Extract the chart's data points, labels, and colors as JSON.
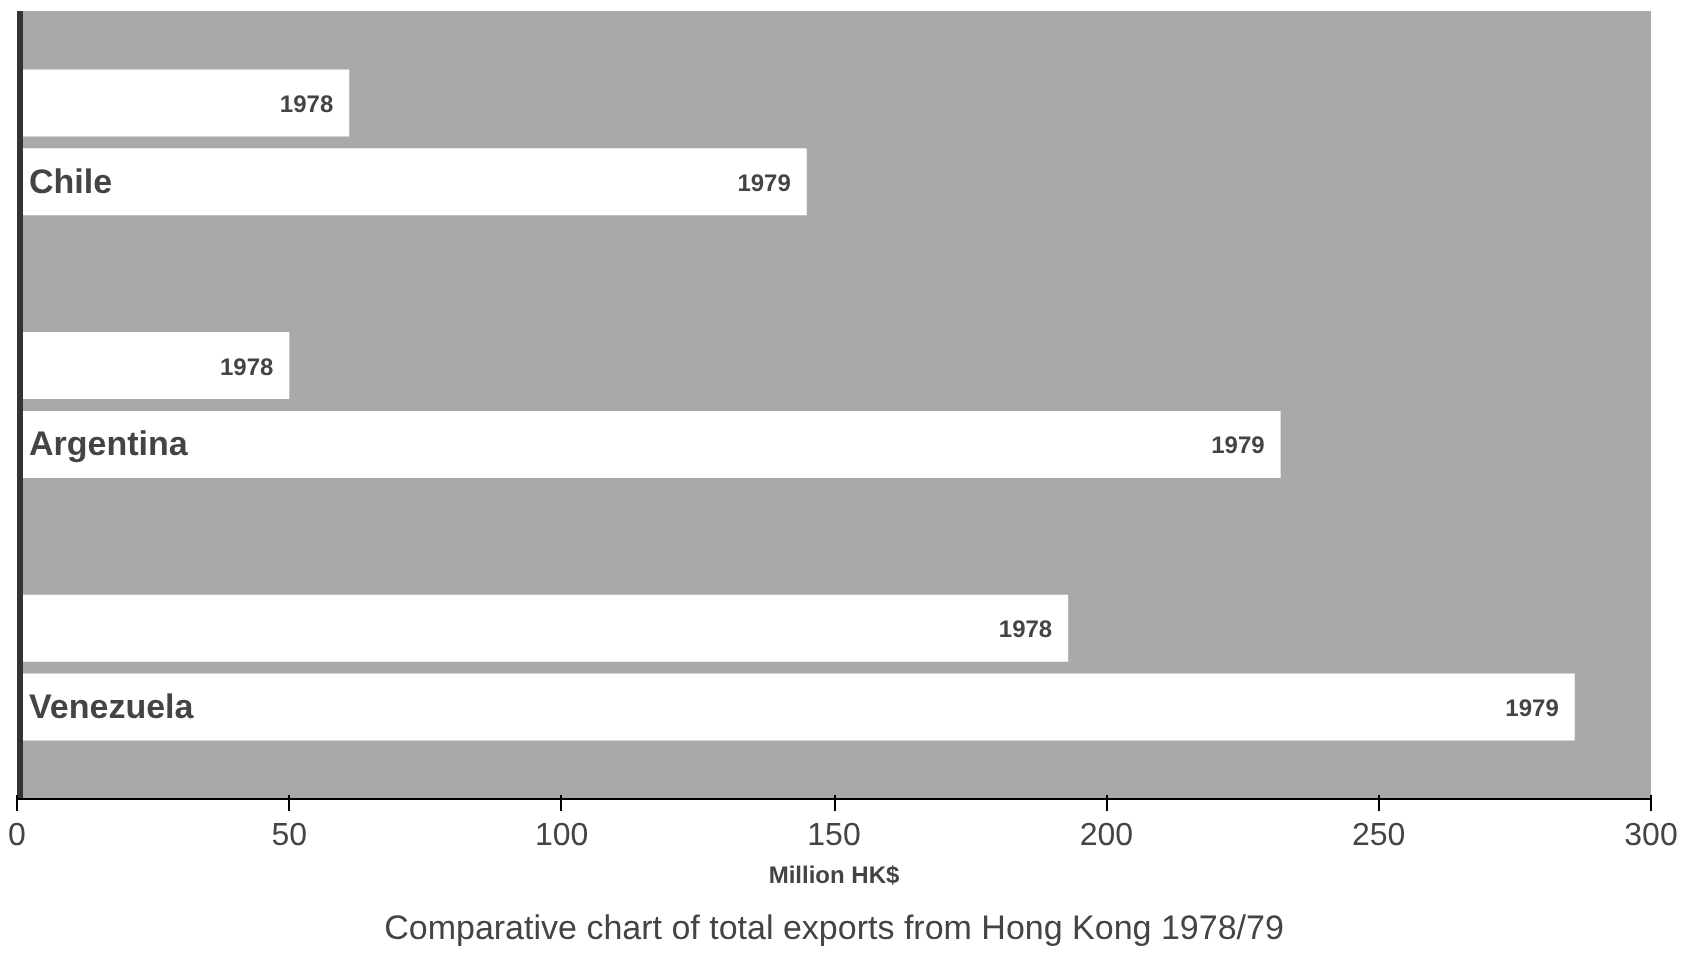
{
  "chart_data": {
    "type": "bar",
    "orientation": "horizontal",
    "categories": [
      "Chile",
      "Argentina",
      "Venezuela"
    ],
    "series": [
      {
        "name": "1978",
        "color": "#ffffff",
        "values": [
          61,
          50,
          193
        ]
      },
      {
        "name": "1979",
        "color": "#ffffff",
        "values": [
          145,
          232,
          286
        ]
      }
    ],
    "xlabel": "Million HK$",
    "xlim": [
      0,
      300
    ],
    "xticks": [
      0,
      50,
      100,
      150,
      200,
      250,
      300
    ],
    "grid": false,
    "annotations": [
      "Comparative chart of total exports from Hong Kong 1978/79"
    ]
  }
}
